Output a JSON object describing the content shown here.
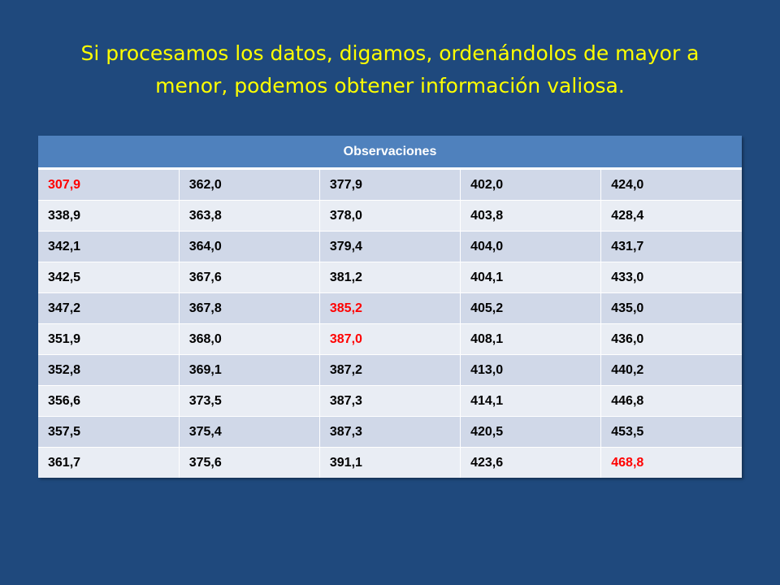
{
  "title": {
    "line1": "Si procesamos los datos, digamos, ordenándolos de mayor a",
    "line2": "menor, podemos obtener información valiosa."
  },
  "table": {
    "header": "Observaciones",
    "rows": [
      [
        "307,9",
        "362,0",
        "377,9",
        "402,0",
        "424,0"
      ],
      [
        "338,9",
        "363,8",
        "378,0",
        "403,8",
        "428,4"
      ],
      [
        "342,1",
        "364,0",
        "379,4",
        "404,0",
        "431,7"
      ],
      [
        "342,5",
        "367,6",
        "381,2",
        "404,1",
        "433,0"
      ],
      [
        "347,2",
        "367,8",
        "385,2",
        "405,2",
        "435,0"
      ],
      [
        "351,9",
        "368,0",
        "387,0",
        "408,1",
        "436,0"
      ],
      [
        "352,8",
        "369,1",
        "387,2",
        "413,0",
        "440,2"
      ],
      [
        "356,6",
        "373,5",
        "387,3",
        "414,1",
        "446,8"
      ],
      [
        "357,5",
        "375,4",
        "387,3",
        "420,5",
        "453,5"
      ],
      [
        "361,7",
        "375,6",
        "391,1",
        "423,6",
        "468,8"
      ]
    ],
    "highlighted_cells": [
      [
        0,
        0
      ],
      [
        4,
        2
      ],
      [
        5,
        2
      ],
      [
        9,
        4
      ]
    ]
  },
  "colors": {
    "background": "#1f497d",
    "title_text": "#ffff00",
    "header_bg": "#4f81bd",
    "row_odd": "#d0d8e8",
    "row_even": "#e9edf4",
    "highlight_text": "#ff0000"
  }
}
